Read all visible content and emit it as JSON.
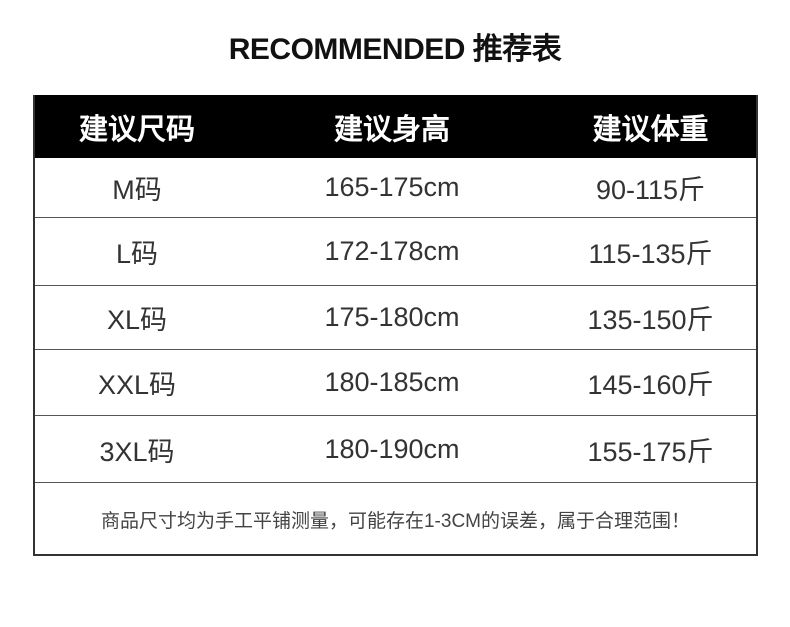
{
  "title": "RECOMMENDED 推荐表",
  "table": {
    "headers": [
      "建议尺码",
      "建议身高",
      "建议体重"
    ],
    "rows": [
      [
        "M码",
        "165-175cm",
        "90-115斤"
      ],
      [
        "L码",
        "172-178cm",
        "115-135斤"
      ],
      [
        "XL码",
        "175-180cm",
        "135-150斤"
      ],
      [
        "XXL码",
        "180-185cm",
        "145-160斤"
      ],
      [
        "3XL码",
        "180-190cm",
        "155-175斤"
      ]
    ],
    "note": "商品尺寸均为手工平铺测量，可能存在1-3CM的误差，属于合理范围！"
  }
}
